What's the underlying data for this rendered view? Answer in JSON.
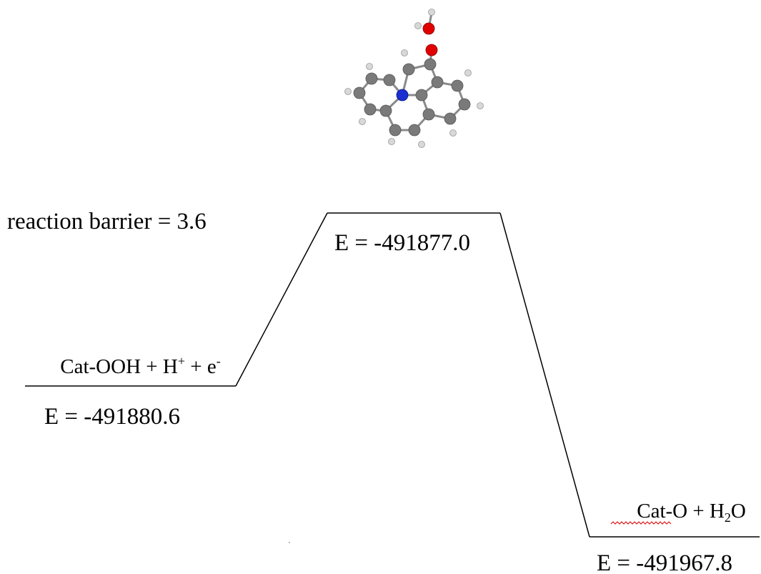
{
  "annotation": "reaction barrier = 3.6",
  "states": [
    {
      "label": [
        "Cat-OOH + H",
        "+",
        " + e",
        "-"
      ],
      "energy": "E = -491880.6"
    },
    {
      "energy": "E = -491877.0"
    },
    {
      "label": [
        "Cat-O + H",
        "2",
        "O"
      ],
      "energy": "E = -491967.8"
    }
  ]
}
